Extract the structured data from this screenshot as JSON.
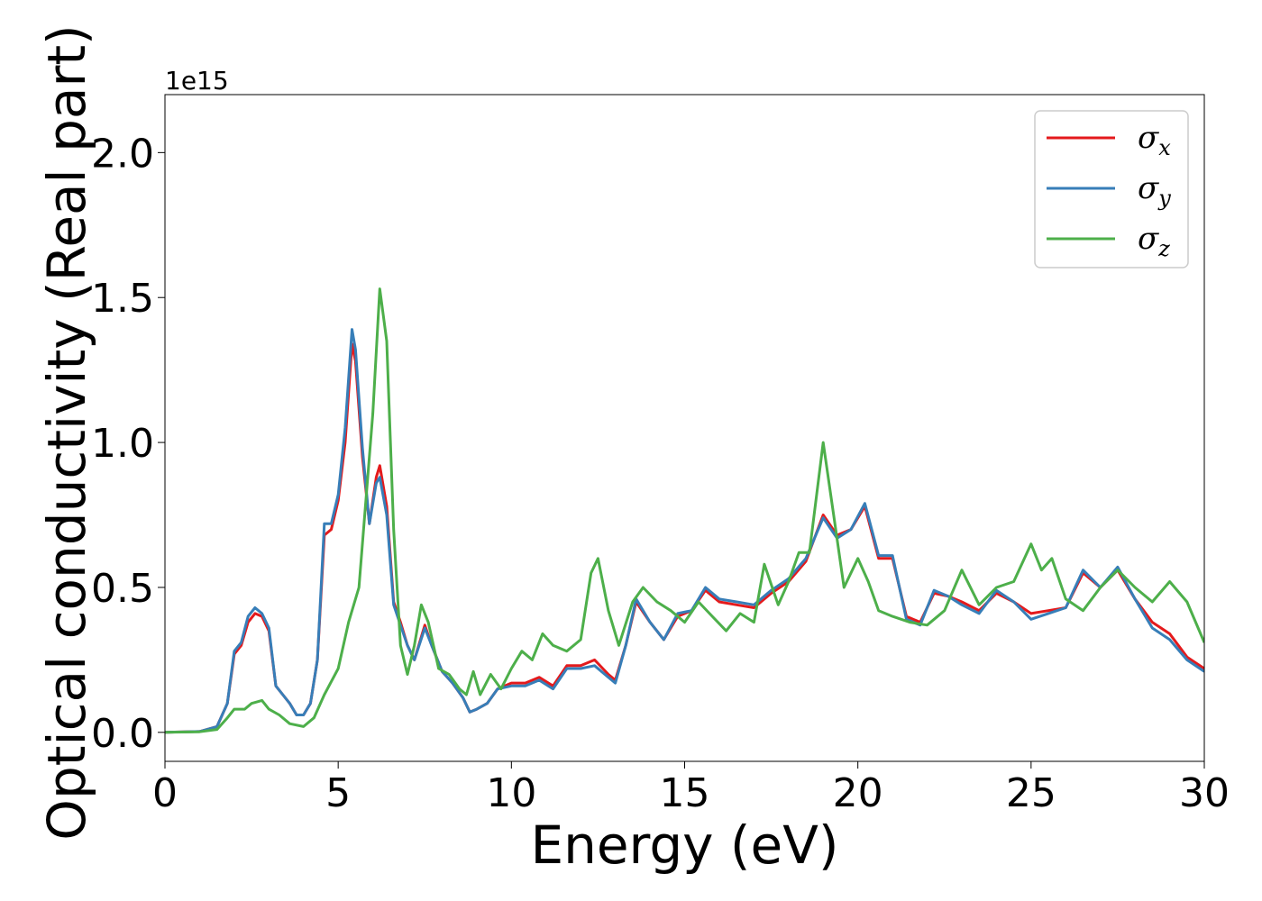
{
  "chart_data": {
    "type": "line",
    "xlabel": "Energy (eV)",
    "ylabel": "Optical conductivity (Real part)",
    "y_offset_text": "1e15",
    "xlim": [
      0,
      30
    ],
    "ylim": [
      -0.1,
      2.2
    ],
    "x_ticks": [
      0,
      5,
      10,
      15,
      20,
      25,
      30
    ],
    "x_tick_labels": [
      "0",
      "5",
      "10",
      "15",
      "20",
      "25",
      "30"
    ],
    "y_ticks": [
      0.0,
      0.5,
      1.0,
      1.5,
      2.0
    ],
    "y_tick_labels": [
      "0.0",
      "0.5",
      "1.0",
      "1.5",
      "2.0"
    ],
    "grid": false,
    "legend_position": "top-right",
    "series": [
      {
        "name": "σx",
        "symbol": "σ",
        "subscript": "x",
        "color": "#e41a1c",
        "points": [
          [
            0,
            0
          ],
          [
            1,
            0.003
          ],
          [
            1.5,
            0.02
          ],
          [
            1.8,
            0.1
          ],
          [
            2.0,
            0.27
          ],
          [
            2.2,
            0.3
          ],
          [
            2.4,
            0.38
          ],
          [
            2.6,
            0.41
          ],
          [
            2.8,
            0.4
          ],
          [
            3.0,
            0.35
          ],
          [
            3.2,
            0.16
          ],
          [
            3.4,
            0.13
          ],
          [
            3.6,
            0.1
          ],
          [
            3.8,
            0.06
          ],
          [
            4.0,
            0.06
          ],
          [
            4.2,
            0.1
          ],
          [
            4.4,
            0.25
          ],
          [
            4.6,
            0.68
          ],
          [
            4.8,
            0.7
          ],
          [
            5.0,
            0.8
          ],
          [
            5.2,
            1.0
          ],
          [
            5.4,
            1.34
          ],
          [
            5.5,
            1.28
          ],
          [
            5.7,
            0.95
          ],
          [
            5.9,
            0.72
          ],
          [
            6.1,
            0.88
          ],
          [
            6.2,
            0.92
          ],
          [
            6.4,
            0.78
          ],
          [
            6.6,
            0.45
          ],
          [
            6.8,
            0.38
          ],
          [
            7.0,
            0.3
          ],
          [
            7.2,
            0.25
          ],
          [
            7.5,
            0.37
          ],
          [
            7.7,
            0.3
          ],
          [
            8.0,
            0.21
          ],
          [
            8.3,
            0.17
          ],
          [
            8.6,
            0.12
          ],
          [
            8.8,
            0.07
          ],
          [
            9.0,
            0.08
          ],
          [
            9.3,
            0.1
          ],
          [
            9.6,
            0.15
          ],
          [
            10.0,
            0.17
          ],
          [
            10.4,
            0.17
          ],
          [
            10.8,
            0.19
          ],
          [
            11.2,
            0.16
          ],
          [
            11.6,
            0.23
          ],
          [
            12.0,
            0.23
          ],
          [
            12.4,
            0.25
          ],
          [
            12.8,
            0.2
          ],
          [
            13.0,
            0.18
          ],
          [
            13.3,
            0.3
          ],
          [
            13.6,
            0.45
          ],
          [
            14.0,
            0.38
          ],
          [
            14.4,
            0.32
          ],
          [
            14.8,
            0.4
          ],
          [
            15.2,
            0.42
          ],
          [
            15.6,
            0.49
          ],
          [
            16.0,
            0.45
          ],
          [
            16.5,
            0.44
          ],
          [
            17.0,
            0.43
          ],
          [
            17.5,
            0.48
          ],
          [
            18.0,
            0.52
          ],
          [
            18.5,
            0.59
          ],
          [
            19.0,
            0.75
          ],
          [
            19.4,
            0.68
          ],
          [
            19.8,
            0.7
          ],
          [
            20.2,
            0.78
          ],
          [
            20.6,
            0.6
          ],
          [
            21.0,
            0.6
          ],
          [
            21.4,
            0.4
          ],
          [
            21.8,
            0.38
          ],
          [
            22.2,
            0.48
          ],
          [
            22.6,
            0.47
          ],
          [
            23.0,
            0.45
          ],
          [
            23.5,
            0.42
          ],
          [
            24.0,
            0.48
          ],
          [
            24.5,
            0.45
          ],
          [
            25.0,
            0.41
          ],
          [
            25.5,
            0.42
          ],
          [
            26.0,
            0.43
          ],
          [
            26.5,
            0.55
          ],
          [
            27.0,
            0.5
          ],
          [
            27.5,
            0.56
          ],
          [
            28.0,
            0.46
          ],
          [
            28.5,
            0.38
          ],
          [
            29.0,
            0.34
          ],
          [
            29.5,
            0.26
          ],
          [
            30.0,
            0.22
          ]
        ]
      },
      {
        "name": "σy",
        "symbol": "σ",
        "subscript": "y",
        "color": "#377eb8",
        "points": [
          [
            0,
            0
          ],
          [
            1,
            0.003
          ],
          [
            1.5,
            0.02
          ],
          [
            1.8,
            0.1
          ],
          [
            2.0,
            0.28
          ],
          [
            2.2,
            0.31
          ],
          [
            2.4,
            0.4
          ],
          [
            2.6,
            0.43
          ],
          [
            2.8,
            0.41
          ],
          [
            3.0,
            0.36
          ],
          [
            3.2,
            0.16
          ],
          [
            3.4,
            0.13
          ],
          [
            3.6,
            0.1
          ],
          [
            3.8,
            0.06
          ],
          [
            4.0,
            0.06
          ],
          [
            4.2,
            0.1
          ],
          [
            4.4,
            0.25
          ],
          [
            4.6,
            0.72
          ],
          [
            4.8,
            0.72
          ],
          [
            5.0,
            0.82
          ],
          [
            5.2,
            1.05
          ],
          [
            5.4,
            1.39
          ],
          [
            5.5,
            1.32
          ],
          [
            5.7,
            0.98
          ],
          [
            5.9,
            0.72
          ],
          [
            6.1,
            0.86
          ],
          [
            6.2,
            0.88
          ],
          [
            6.4,
            0.75
          ],
          [
            6.6,
            0.44
          ],
          [
            6.8,
            0.37
          ],
          [
            7.0,
            0.3
          ],
          [
            7.2,
            0.25
          ],
          [
            7.5,
            0.36
          ],
          [
            7.7,
            0.3
          ],
          [
            8.0,
            0.21
          ],
          [
            8.3,
            0.17
          ],
          [
            8.6,
            0.12
          ],
          [
            8.8,
            0.07
          ],
          [
            9.0,
            0.08
          ],
          [
            9.3,
            0.1
          ],
          [
            9.6,
            0.15
          ],
          [
            10.0,
            0.16
          ],
          [
            10.4,
            0.16
          ],
          [
            10.8,
            0.18
          ],
          [
            11.2,
            0.15
          ],
          [
            11.6,
            0.22
          ],
          [
            12.0,
            0.22
          ],
          [
            12.4,
            0.23
          ],
          [
            12.8,
            0.19
          ],
          [
            13.0,
            0.17
          ],
          [
            13.3,
            0.3
          ],
          [
            13.6,
            0.46
          ],
          [
            14.0,
            0.38
          ],
          [
            14.4,
            0.32
          ],
          [
            14.8,
            0.41
          ],
          [
            15.2,
            0.42
          ],
          [
            15.6,
            0.5
          ],
          [
            16.0,
            0.46
          ],
          [
            16.5,
            0.45
          ],
          [
            17.0,
            0.44
          ],
          [
            17.5,
            0.49
          ],
          [
            18.0,
            0.53
          ],
          [
            18.5,
            0.6
          ],
          [
            19.0,
            0.74
          ],
          [
            19.4,
            0.67
          ],
          [
            19.8,
            0.7
          ],
          [
            20.2,
            0.79
          ],
          [
            20.6,
            0.61
          ],
          [
            21.0,
            0.61
          ],
          [
            21.4,
            0.39
          ],
          [
            21.8,
            0.37
          ],
          [
            22.2,
            0.49
          ],
          [
            22.6,
            0.47
          ],
          [
            23.0,
            0.44
          ],
          [
            23.5,
            0.41
          ],
          [
            24.0,
            0.49
          ],
          [
            24.5,
            0.45
          ],
          [
            25.0,
            0.39
          ],
          [
            25.5,
            0.41
          ],
          [
            26.0,
            0.43
          ],
          [
            26.5,
            0.56
          ],
          [
            27.0,
            0.5
          ],
          [
            27.5,
            0.57
          ],
          [
            28.0,
            0.46
          ],
          [
            28.5,
            0.36
          ],
          [
            29.0,
            0.32
          ],
          [
            29.5,
            0.25
          ],
          [
            30.0,
            0.21
          ]
        ]
      },
      {
        "name": "σz",
        "symbol": "σ",
        "subscript": "z",
        "color": "#4daf4a",
        "points": [
          [
            0,
            0
          ],
          [
            1,
            0.002
          ],
          [
            1.5,
            0.01
          ],
          [
            1.8,
            0.05
          ],
          [
            2.0,
            0.08
          ],
          [
            2.3,
            0.08
          ],
          [
            2.5,
            0.1
          ],
          [
            2.8,
            0.11
          ],
          [
            3.0,
            0.08
          ],
          [
            3.3,
            0.06
          ],
          [
            3.6,
            0.03
          ],
          [
            4.0,
            0.02
          ],
          [
            4.3,
            0.05
          ],
          [
            4.6,
            0.13
          ],
          [
            5.0,
            0.22
          ],
          [
            5.3,
            0.38
          ],
          [
            5.6,
            0.5
          ],
          [
            5.8,
            0.8
          ],
          [
            6.0,
            1.1
          ],
          [
            6.2,
            1.53
          ],
          [
            6.4,
            1.35
          ],
          [
            6.6,
            0.7
          ],
          [
            6.8,
            0.3
          ],
          [
            7.0,
            0.2
          ],
          [
            7.2,
            0.3
          ],
          [
            7.4,
            0.44
          ],
          [
            7.6,
            0.38
          ],
          [
            7.9,
            0.22
          ],
          [
            8.2,
            0.2
          ],
          [
            8.5,
            0.15
          ],
          [
            8.7,
            0.13
          ],
          [
            8.9,
            0.21
          ],
          [
            9.1,
            0.13
          ],
          [
            9.4,
            0.2
          ],
          [
            9.7,
            0.15
          ],
          [
            10.0,
            0.22
          ],
          [
            10.3,
            0.28
          ],
          [
            10.6,
            0.25
          ],
          [
            10.9,
            0.34
          ],
          [
            11.2,
            0.3
          ],
          [
            11.6,
            0.28
          ],
          [
            12.0,
            0.32
          ],
          [
            12.3,
            0.55
          ],
          [
            12.5,
            0.6
          ],
          [
            12.8,
            0.42
          ],
          [
            13.1,
            0.3
          ],
          [
            13.5,
            0.45
          ],
          [
            13.8,
            0.5
          ],
          [
            14.2,
            0.45
          ],
          [
            14.6,
            0.42
          ],
          [
            15.0,
            0.38
          ],
          [
            15.4,
            0.45
          ],
          [
            15.8,
            0.4
          ],
          [
            16.2,
            0.35
          ],
          [
            16.6,
            0.41
          ],
          [
            17.0,
            0.38
          ],
          [
            17.3,
            0.58
          ],
          [
            17.7,
            0.44
          ],
          [
            18.0,
            0.52
          ],
          [
            18.3,
            0.62
          ],
          [
            18.6,
            0.62
          ],
          [
            19.0,
            1.0
          ],
          [
            19.3,
            0.75
          ],
          [
            19.6,
            0.5
          ],
          [
            20.0,
            0.6
          ],
          [
            20.3,
            0.52
          ],
          [
            20.6,
            0.42
          ],
          [
            21.0,
            0.4
          ],
          [
            21.5,
            0.38
          ],
          [
            22.0,
            0.37
          ],
          [
            22.5,
            0.42
          ],
          [
            23.0,
            0.56
          ],
          [
            23.5,
            0.44
          ],
          [
            24.0,
            0.5
          ],
          [
            24.5,
            0.52
          ],
          [
            25.0,
            0.65
          ],
          [
            25.3,
            0.56
          ],
          [
            25.6,
            0.6
          ],
          [
            26.0,
            0.46
          ],
          [
            26.5,
            0.42
          ],
          [
            27.0,
            0.5
          ],
          [
            27.5,
            0.56
          ],
          [
            28.0,
            0.5
          ],
          [
            28.5,
            0.45
          ],
          [
            29.0,
            0.52
          ],
          [
            29.5,
            0.45
          ],
          [
            30.0,
            0.31
          ]
        ]
      }
    ]
  }
}
